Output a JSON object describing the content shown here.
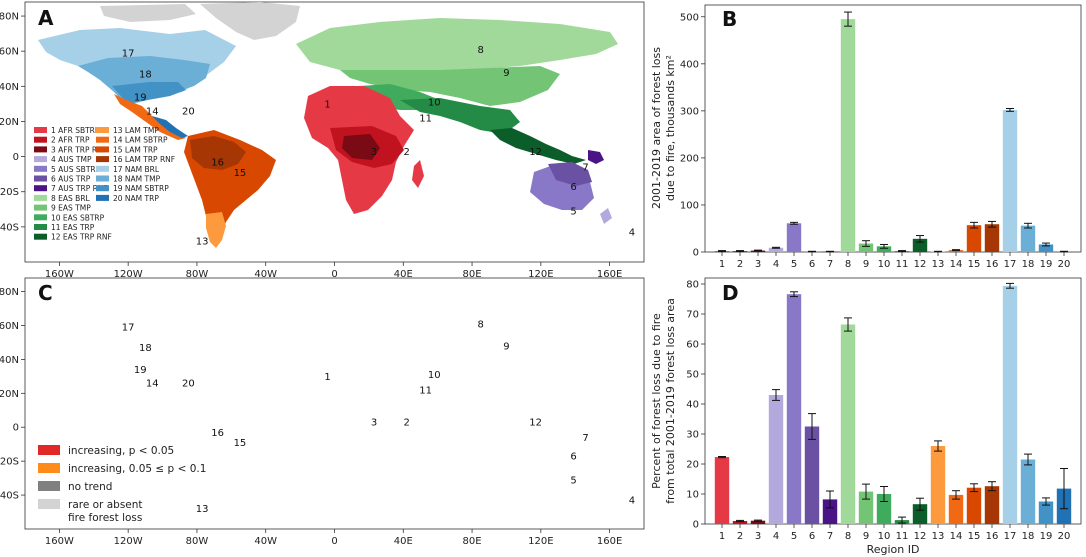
{
  "colors": {
    "ocean": "#ffffff",
    "rare": "#d3d3d3",
    "increasing": "#e02828",
    "increasing_weak": "#ff8c1a",
    "no_trend": "#808080",
    "frame": "#333333"
  },
  "panels": {
    "A": "A",
    "B": "B",
    "C": "C",
    "D": "D"
  },
  "map_axes": {
    "lat_ticks": [
      "80N",
      "60N",
      "40N",
      "20N",
      "0",
      "20S",
      "40S"
    ],
    "lon_ticks": [
      "160W",
      "120W",
      "80W",
      "40W",
      "0",
      "40E",
      "80E",
      "120E",
      "160E"
    ]
  },
  "region_labels": [
    {
      "id": "1",
      "lon": -4,
      "lat": 30
    },
    {
      "id": "2",
      "lon": 42,
      "lat": 3
    },
    {
      "id": "3",
      "lon": 23,
      "lat": 3
    },
    {
      "id": "4",
      "lon": 173,
      "lat": -43
    },
    {
      "id": "5",
      "lon": 139,
      "lat": -31
    },
    {
      "id": "6",
      "lon": 139,
      "lat": -17
    },
    {
      "id": "7",
      "lon": 146,
      "lat": -6
    },
    {
      "id": "8",
      "lon": 85,
      "lat": 61
    },
    {
      "id": "9",
      "lon": 100,
      "lat": 48
    },
    {
      "id": "10",
      "lon": 58,
      "lat": 31
    },
    {
      "id": "11",
      "lon": 53,
      "lat": 22
    },
    {
      "id": "12",
      "lon": 117,
      "lat": 3
    },
    {
      "id": "13",
      "lon": -77,
      "lat": -48
    },
    {
      "id": "14",
      "lon": -106,
      "lat": 26
    },
    {
      "id": "15",
      "lon": -55,
      "lat": -9
    },
    {
      "id": "16",
      "lon": -68,
      "lat": -3
    },
    {
      "id": "17",
      "lon": -120,
      "lat": 59
    },
    {
      "id": "18",
      "lon": -110,
      "lat": 47
    },
    {
      "id": "19",
      "lon": -113,
      "lat": 34
    },
    {
      "id": "20",
      "lon": -85,
      "lat": 26
    }
  ],
  "legend_A": [
    {
      "label": "1 AFR SBTRP",
      "color": "#e63946"
    },
    {
      "label": "2 AFR TRP",
      "color": "#c1121f"
    },
    {
      "label": "3 AFR TRP RNF",
      "color": "#7a0a14"
    },
    {
      "label": "4 AUS TMP",
      "color": "#b4a9dd"
    },
    {
      "label": "5 AUS SBTRP",
      "color": "#8878c7"
    },
    {
      "label": "6 AUS TRP",
      "color": "#6a51a3"
    },
    {
      "label": "7 AUS TRP RNF",
      "color": "#4a1486"
    },
    {
      "label": "8 EAS BRL",
      "color": "#a1d99b"
    },
    {
      "label": "9 EAS TMP",
      "color": "#74c476"
    },
    {
      "label": "10 EAS SBTRP",
      "color": "#41ab5d"
    },
    {
      "label": "11 EAS TRP",
      "color": "#238b45"
    },
    {
      "label": "12 EAS TRP RNF",
      "color": "#0b5d2a"
    },
    {
      "label": "13 LAM TMP",
      "color": "#fd9a3d"
    },
    {
      "label": "14 LAM SBTRP",
      "color": "#f16913"
    },
    {
      "label": "15 LAM TRP",
      "color": "#d94801"
    },
    {
      "label": "16 LAM TRP RNF",
      "color": "#a63603"
    },
    {
      "label": "17 NAM BRL",
      "color": "#a6cfe8"
    },
    {
      "label": "18 NAM TMP",
      "color": "#6baed6"
    },
    {
      "label": "19 NAM SBTRP",
      "color": "#4292c6"
    },
    {
      "label": "20 NAM TRP",
      "color": "#2171b5"
    }
  ],
  "legend_C": [
    {
      "label": "increasing, p < 0.05",
      "color": "#e02828"
    },
    {
      "label": "increasing, 0.05 ≤ p < 0.1",
      "color": "#ff8c1a"
    },
    {
      "label": "no trend",
      "color": "#808080"
    },
    {
      "label": "rare or absent",
      "label2": "fire forest loss",
      "color": "#d3d3d3"
    }
  ],
  "chart_data": [
    {
      "panel": "B",
      "type": "bar",
      "categories": [
        "1",
        "2",
        "3",
        "4",
        "5",
        "6",
        "7",
        "8",
        "9",
        "10",
        "11",
        "12",
        "13",
        "14",
        "15",
        "16",
        "17",
        "18",
        "19",
        "20"
      ],
      "values": [
        2,
        2,
        3,
        9,
        61,
        1,
        1,
        495,
        18,
        12,
        2,
        28,
        1,
        4,
        57,
        59,
        302,
        56,
        16,
        1
      ],
      "errors": [
        1,
        1,
        1,
        1,
        2,
        0.5,
        0.5,
        15,
        6,
        4,
        1,
        7,
        0.5,
        1,
        6,
        6,
        3,
        5,
        3,
        0.5
      ],
      "colors": [
        "#e63946",
        "#c1121f",
        "#7a0a14",
        "#b4a9dd",
        "#8878c7",
        "#6a51a3",
        "#4a1486",
        "#a1d99b",
        "#74c476",
        "#41ab5d",
        "#238b45",
        "#0b5d2a",
        "#fd9a3d",
        "#f16913",
        "#d94801",
        "#a63603",
        "#a6cfe8",
        "#6baed6",
        "#4292c6",
        "#2171b5"
      ],
      "yticks": [
        "0",
        "100",
        "200",
        "300",
        "400",
        "500"
      ],
      "ylim": [
        0,
        525
      ],
      "ylabel": "2001-2019 area of forest loss",
      "ylabel2": "due to fire, thousands km²",
      "xlabel": ""
    },
    {
      "panel": "D",
      "type": "bar",
      "categories": [
        "1",
        "2",
        "3",
        "4",
        "5",
        "6",
        "7",
        "8",
        "9",
        "10",
        "11",
        "12",
        "13",
        "14",
        "15",
        "16",
        "17",
        "18",
        "19",
        "20"
      ],
      "values": [
        22.3,
        1.0,
        1.1,
        43.0,
        76.6,
        32.5,
        8.2,
        66.5,
        10.8,
        10.0,
        1.3,
        6.6,
        26.0,
        9.7,
        12.1,
        12.6,
        79.4,
        21.5,
        7.5,
        11.8
      ],
      "errors": [
        0.2,
        0.2,
        0.2,
        1.8,
        0.8,
        4.3,
        2.8,
        2.2,
        2.5,
        2.5,
        1.0,
        2.0,
        1.7,
        1.4,
        1.3,
        1.5,
        0.8,
        1.8,
        1.2,
        6.7
      ],
      "colors": [
        "#e63946",
        "#c1121f",
        "#7a0a14",
        "#b4a9dd",
        "#8878c7",
        "#6a51a3",
        "#4a1486",
        "#a1d99b",
        "#74c476",
        "#41ab5d",
        "#238b45",
        "#0b5d2a",
        "#fd9a3d",
        "#f16913",
        "#d94801",
        "#a63603",
        "#a6cfe8",
        "#6baed6",
        "#4292c6",
        "#2171b5"
      ],
      "yticks": [
        "0",
        "10",
        "20",
        "30",
        "40",
        "50",
        "60",
        "70",
        "80"
      ],
      "ylim": [
        0,
        82
      ],
      "ylabel": "Percent of forest loss due to fire",
      "ylabel2": "from total 2001-2019 forest loss area",
      "xlabel": "Region ID"
    }
  ]
}
